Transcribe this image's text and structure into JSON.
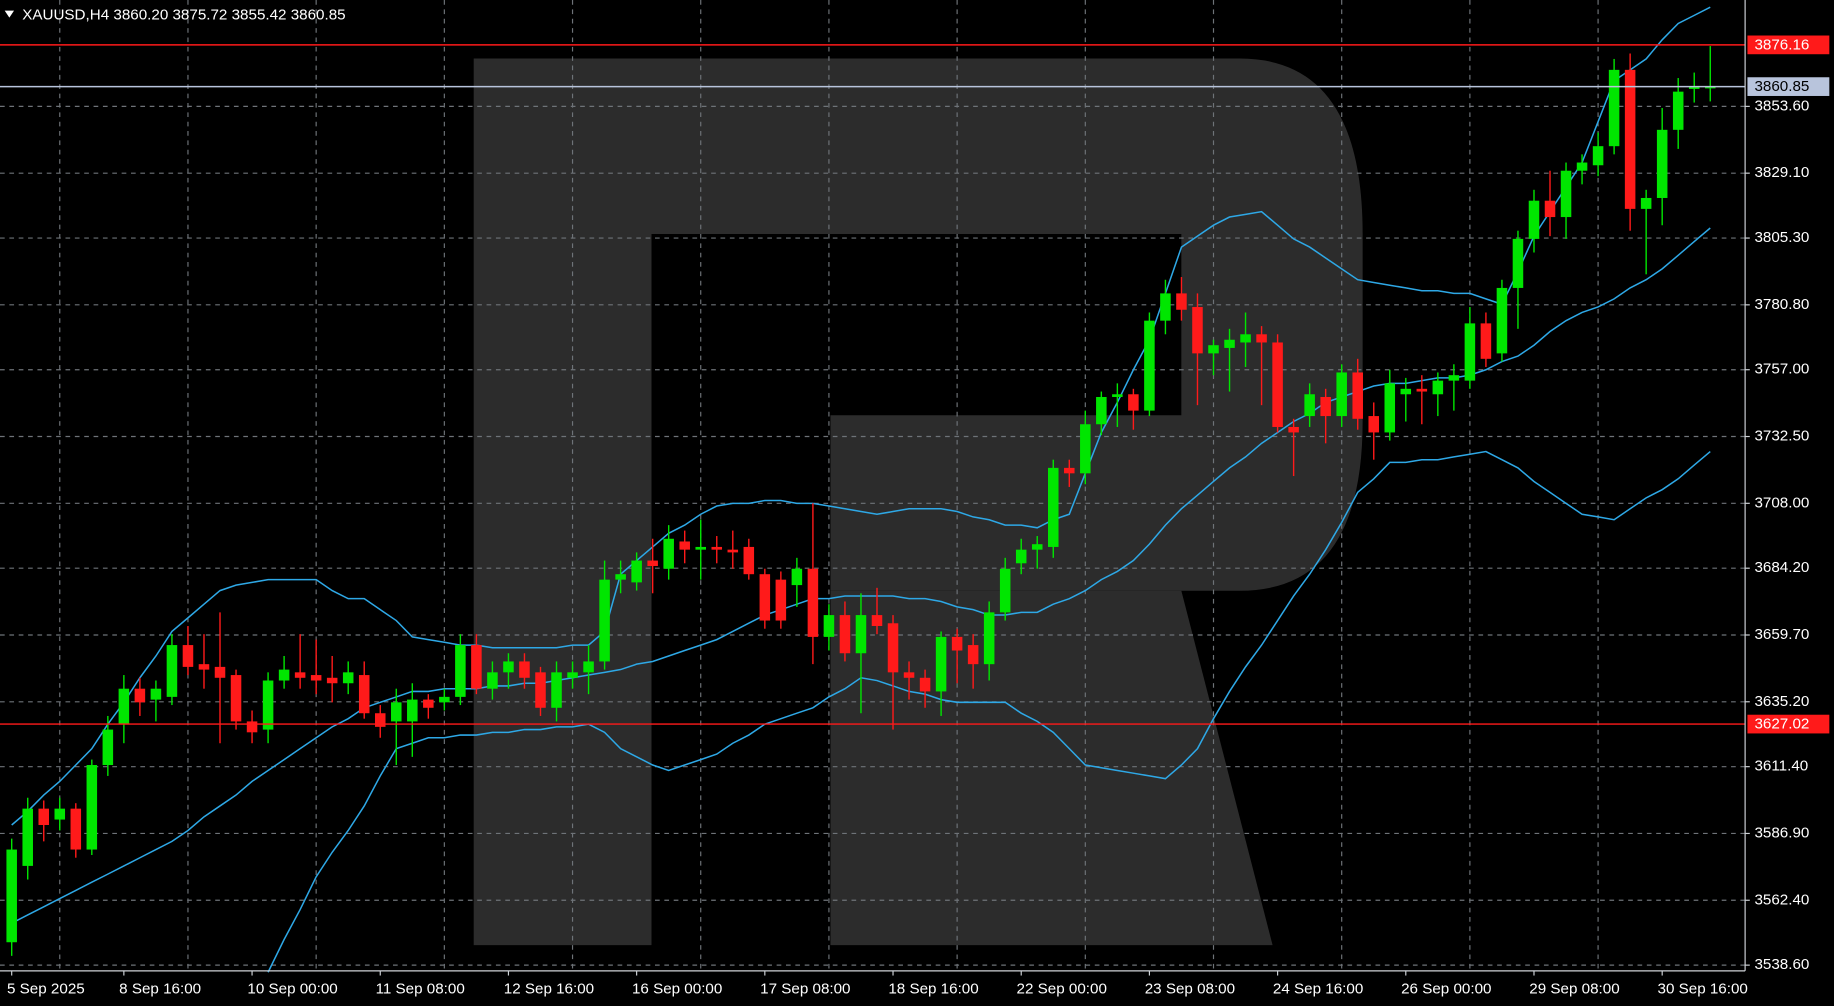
{
  "chart_data": {
    "type": "candlestick",
    "title": "XAUUSD,H4  3860.20 3875.72 3855.42 3860.85",
    "categories": [
      "5 Sep 2025",
      null,
      null,
      null,
      null,
      null,
      null,
      "8 Sep 16:00",
      null,
      null,
      null,
      null,
      null,
      null,
      null,
      "10 Sep 00:00",
      null,
      null,
      null,
      null,
      null,
      null,
      null,
      "11 Sep 08:00",
      null,
      null,
      null,
      null,
      null,
      null,
      null,
      "12 Sep 16:00",
      null,
      null,
      null,
      null,
      null,
      null,
      null,
      "16 Sep 00:00",
      null,
      null,
      null,
      null,
      null,
      null,
      null,
      "17 Sep 08:00",
      null,
      null,
      null,
      null,
      null,
      null,
      null,
      "18 Sep 16:00",
      null,
      null,
      null,
      null,
      null,
      null,
      null,
      "22 Sep 00:00",
      null,
      null,
      null,
      null,
      null,
      null,
      null,
      "23 Sep 08:00",
      null,
      null,
      null,
      null,
      null,
      null,
      null,
      "24 Sep 16:00",
      null,
      null,
      null,
      null,
      null,
      null,
      null,
      "26 Sep 00:00",
      null,
      null,
      null,
      null,
      null,
      null,
      null,
      "29 Sep 08:00",
      null,
      null,
      null,
      null,
      null,
      null,
      null,
      "30 Sep 16:00",
      null,
      null,
      null
    ],
    "open": [
      3547,
      3575,
      3596,
      3592,
      3596,
      3581,
      3612,
      3627,
      3640,
      3636,
      3637,
      3656,
      3649,
      3648,
      3645,
      3628,
      3625,
      3643,
      3646,
      3645,
      3644,
      3642,
      3645,
      3631,
      3628,
      3628,
      3636,
      3635,
      3637,
      3656,
      3640,
      3646,
      3650,
      3646,
      3633,
      3644,
      3646,
      3650,
      3680,
      3679,
      3687,
      3684,
      3694,
      3691,
      3692,
      3691,
      3692,
      3682,
      3680,
      3678,
      3684,
      3659,
      3667,
      3653,
      3667,
      3664,
      3646,
      3644,
      3639,
      3659,
      3656,
      3649,
      3668,
      3686,
      3691,
      3692,
      3721,
      3719,
      3737,
      3747,
      3748,
      3742,
      3775,
      3785,
      3780,
      3763,
      3765,
      3767,
      3770,
      3767,
      3736,
      3740,
      3747,
      3740,
      3756,
      3740,
      3734,
      3748,
      3750,
      3748,
      3753,
      3753,
      3774,
      3763,
      3787,
      3805,
      3819,
      3813,
      3830,
      3832,
      3839,
      3867,
      3816,
      3820,
      3845,
      3860,
      3860.2
    ],
    "high": [
      3585,
      3600,
      3599,
      3600,
      3598,
      3614,
      3630,
      3645,
      3644,
      3643,
      3660,
      3663,
      3660,
      3668,
      3647,
      3632,
      3646,
      3652,
      3660,
      3658,
      3652,
      3650,
      3650,
      3634,
      3640,
      3642,
      3638,
      3640,
      3660,
      3660,
      3650,
      3653,
      3653,
      3648,
      3650,
      3650,
      3656,
      3687,
      3687,
      3690,
      3695,
      3700,
      3698,
      3702,
      3696,
      3698,
      3695,
      3684,
      3683,
      3688,
      3708,
      3671,
      3672,
      3675,
      3677,
      3667,
      3650,
      3647,
      3661,
      3662,
      3660,
      3672,
      3688,
      3695,
      3696,
      3724,
      3724,
      3742,
      3749,
      3752,
      3750,
      3778,
      3790,
      3791,
      3785,
      3768,
      3772,
      3778,
      3773,
      3770,
      3739,
      3752,
      3750,
      3759,
      3761,
      3745,
      3757,
      3754,
      3755,
      3756,
      3759,
      3780,
      3778,
      3790,
      3808,
      3823,
      3830,
      3833,
      3836,
      3844,
      3871,
      3873,
      3823,
      3853,
      3864,
      3866,
      3875.72
    ],
    "low": [
      3542,
      3570,
      3584,
      3588,
      3578,
      3579,
      3608,
      3620,
      3630,
      3628,
      3634,
      3645,
      3640,
      3620,
      3625,
      3620,
      3620,
      3640,
      3640,
      3638,
      3635,
      3638,
      3629,
      3622,
      3612,
      3615,
      3629,
      3632,
      3634,
      3638,
      3636,
      3640,
      3640,
      3630,
      3628,
      3640,
      3638,
      3647,
      3675,
      3676,
      3675,
      3680,
      3686,
      3680,
      3686,
      3684,
      3680,
      3662,
      3662,
      3670,
      3649,
      3654,
      3650,
      3631,
      3660,
      3625,
      3636,
      3633,
      3630,
      3642,
      3640,
      3643,
      3665,
      3682,
      3684,
      3688,
      3714,
      3715,
      3733,
      3736,
      3735,
      3740,
      3770,
      3775,
      3744,
      3755,
      3749,
      3758,
      3744,
      3734,
      3718,
      3736,
      3730,
      3736,
      3735,
      3724,
      3731,
      3738,
      3737,
      3740,
      3742,
      3750,
      3758,
      3760,
      3772,
      3800,
      3806,
      3805,
      3825,
      3828,
      3836,
      3808,
      3792,
      3810,
      3838,
      3855,
      3855.42
    ],
    "close": [
      3581,
      3596,
      3590,
      3596,
      3581,
      3612,
      3625,
      3640,
      3635,
      3640,
      3656,
      3648,
      3647,
      3644,
      3628,
      3624,
      3643,
      3647,
      3644,
      3643,
      3642,
      3646,
      3631,
      3626,
      3635,
      3636,
      3633,
      3637,
      3656,
      3640,
      3646,
      3650,
      3644,
      3633,
      3646,
      3646,
      3650,
      3680,
      3682,
      3687,
      3685,
      3695,
      3691,
      3692,
      3691,
      3690,
      3682,
      3665,
      3665,
      3684,
      3659,
      3667,
      3653,
      3667,
      3663,
      3646,
      3644,
      3639,
      3659,
      3654,
      3649,
      3668,
      3684,
      3691,
      3693,
      3721,
      3719,
      3737,
      3747,
      3748,
      3742,
      3775,
      3785,
      3779,
      3763,
      3766,
      3768,
      3770,
      3767,
      3736,
      3734,
      3748,
      3740,
      3756,
      3739,
      3734,
      3752,
      3750,
      3749,
      3753,
      3755,
      3774,
      3761,
      3787,
      3805,
      3819,
      3813,
      3830,
      3833,
      3839,
      3867,
      3816,
      3820,
      3845,
      3859,
      3861,
      3860.85
    ],
    "up_color": "#00e600",
    "down_color": "#ff1a1a",
    "series": [
      {
        "color": "#2ea8e6",
        "values": [
          3590,
          3595,
          3601,
          3606,
          3612,
          3618,
          3627,
          3635,
          3644,
          3652,
          3661,
          3666,
          3671,
          3676,
          3678,
          3679,
          3680,
          3680,
          3680,
          3680,
          3676,
          3673,
          3673,
          3669,
          3665,
          3659,
          3658,
          3657,
          3656,
          3656,
          3655,
          3655,
          3655,
          3655,
          3655,
          3656,
          3656,
          3661,
          3682,
          3687,
          3692,
          3697,
          3700,
          3704,
          3707,
          3708,
          3708,
          3709,
          3709,
          3708,
          3708,
          3707,
          3706,
          3705,
          3704,
          3705,
          3706,
          3706,
          3706,
          3705,
          3703,
          3702,
          3700,
          3700,
          3699,
          3702,
          3704,
          3719,
          3734,
          3745,
          3757,
          3768,
          3785,
          3802,
          3806,
          3810,
          3813,
          3814,
          3815,
          3810,
          3805,
          3802,
          3798,
          3794,
          3790,
          3789,
          3788,
          3787,
          3786,
          3786,
          3785,
          3785,
          3783,
          3781,
          3793,
          3806,
          3815,
          3824,
          3833,
          3848,
          3863,
          3867,
          3871,
          3878,
          3884,
          3887,
          3890
        ]
      },
      {
        "color": "#2ea8e6",
        "values": [
          3554,
          3557,
          3560,
          3563,
          3566,
          3569,
          3572,
          3575,
          3578,
          3581,
          3584,
          3588,
          3593,
          3597,
          3601,
          3606,
          3610,
          3614,
          3618,
          3622,
          3626,
          3629,
          3633,
          3635,
          3637,
          3639,
          3639,
          3640,
          3640,
          3640,
          3641,
          3641,
          3642,
          3642,
          3643,
          3644,
          3645,
          3646,
          3647,
          3649,
          3650,
          3652,
          3654,
          3656,
          3658,
          3661,
          3664,
          3667,
          3669,
          3671,
          3673,
          3673,
          3674,
          3674,
          3674,
          3674,
          3673,
          3673,
          3672,
          3670,
          3669,
          3667,
          3667,
          3668,
          3668,
          3671,
          3673,
          3676,
          3680,
          3683,
          3687,
          3693,
          3700,
          3706,
          3711,
          3716,
          3721,
          3725,
          3730,
          3734,
          3738,
          3741,
          3745,
          3747,
          3749,
          3751,
          3752,
          3752,
          3753,
          3754,
          3754,
          3755,
          3757,
          3760,
          3762,
          3766,
          3771,
          3775,
          3778,
          3780,
          3783,
          3787,
          3790,
          3794,
          3799,
          3804,
          3809
        ]
      },
      {
        "color": "#2ea8e6",
        "values": [
          null,
          null,
          null,
          null,
          null,
          null,
          null,
          null,
          null,
          null,
          null,
          null,
          null,
          null,
          null,
          null,
          3536,
          3548,
          3559,
          3571,
          3580,
          3588,
          3597,
          3608,
          3618,
          3620,
          3622,
          3622,
          3623,
          3623,
          3624,
          3624,
          3625,
          3625,
          3626,
          3626,
          3627,
          3624,
          3618,
          3615,
          3612,
          3610,
          3612,
          3614,
          3616,
          3620,
          3623,
          3627,
          3629,
          3631,
          3633,
          3637,
          3640,
          3644,
          3643,
          3641,
          3639,
          3638,
          3636,
          3635,
          3635,
          3635,
          3635,
          3631,
          3628,
          3624,
          3618,
          3612,
          3611,
          3610,
          3609,
          3608,
          3607,
          3612,
          3618,
          3629,
          3639,
          3648,
          3656,
          3665,
          3674,
          3682,
          3691,
          3701,
          3712,
          3717,
          3723,
          3723,
          3724,
          3724,
          3725,
          3726,
          3727,
          3724,
          3721,
          3716,
          3712,
          3708,
          3704,
          3703,
          3702,
          3706,
          3710,
          3713,
          3717,
          3722,
          3727
        ]
      }
    ],
    "hlines": [
      {
        "value": 3876.16,
        "color": "#ff1a1a",
        "text_color": "#ffffff"
      },
      {
        "value": 3860.85,
        "color": "#b8c4dc",
        "text_color": "#000000"
      },
      {
        "value": 3627.02,
        "color": "#ff1a1a",
        "text_color": "#ffffff"
      }
    ],
    "ylim": [
      3536.5,
      3892.6
    ],
    "yticks": [
      {
        "value": 3538.6,
        "label": "3538.60"
      },
      {
        "value": 3562.4,
        "label": "3562.40"
      },
      {
        "value": 3586.9,
        "label": "3586.90"
      },
      {
        "value": 3611.4,
        "label": "3611.40"
      },
      {
        "value": 3635.2,
        "label": "3635.20"
      },
      {
        "value": 3659.7,
        "label": "3659.70"
      },
      {
        "value": 3684.2,
        "label": "3684.20"
      },
      {
        "value": 3708,
        "label": "3708.00"
      },
      {
        "value": 3732.5,
        "label": "3732.50"
      },
      {
        "value": 3757,
        "label": "3757.00"
      },
      {
        "value": 3780.8,
        "label": "3780.80"
      },
      {
        "value": 3805.3,
        "label": "3805.30"
      },
      {
        "value": 3829.1,
        "label": "3829.10"
      },
      {
        "value": 3853.6,
        "label": "3853.60"
      }
    ],
    "grid": true
  }
}
